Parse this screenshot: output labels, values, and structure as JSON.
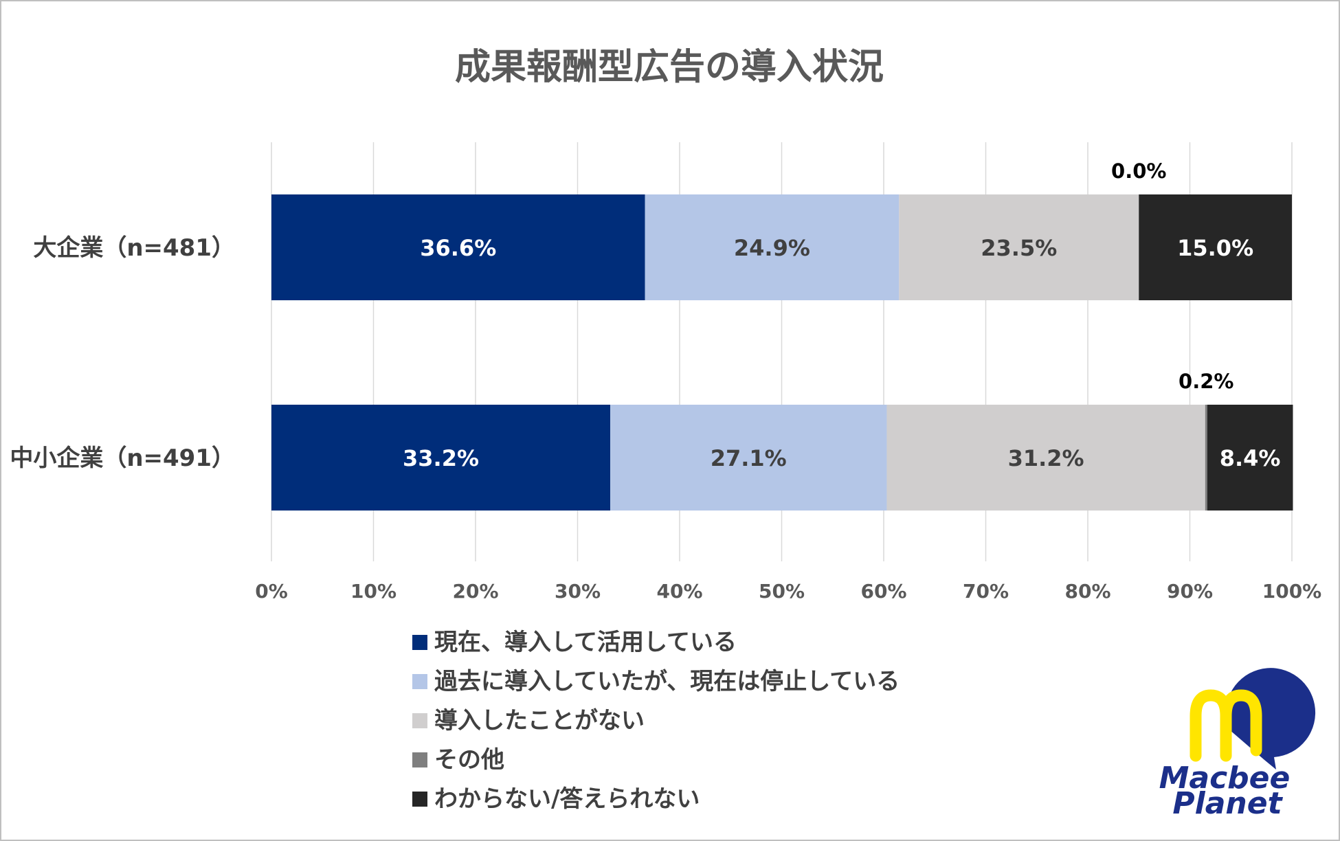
{
  "chart_data": {
    "type": "bar",
    "orientation": "horizontal",
    "stacked": true,
    "normalized": true,
    "title": "成果報酬型広告の導入状況",
    "categories": [
      "大企業（n=481）",
      "中小企業（n=491）"
    ],
    "series": [
      {
        "name": "現在、導入して活用している",
        "color": "#002d7a",
        "label_color": "#ffffff",
        "values": [
          36.6,
          33.2
        ],
        "labels": [
          "36.6%",
          "33.2%"
        ]
      },
      {
        "name": "過去に導入していたが、現在は停止している",
        "color": "#b4c6e7",
        "label_color": "#404040",
        "values": [
          24.9,
          27.1
        ],
        "labels": [
          "24.9%",
          "27.1%"
        ]
      },
      {
        "name": "導入したことがない",
        "color": "#d0cece",
        "label_color": "#404040",
        "values": [
          23.5,
          31.2
        ],
        "labels": [
          "23.5%",
          "31.2%"
        ]
      },
      {
        "name": "その他",
        "color": "#7f7f7f",
        "label_color": "#000000",
        "values": [
          0.0,
          0.2
        ],
        "labels": [
          "0.0%",
          "0.2%"
        ],
        "label_position": "above"
      },
      {
        "name": "わからない/答えられない",
        "color": "#262626",
        "label_color": "#ffffff",
        "values": [
          15.0,
          8.4
        ],
        "labels": [
          "15.0%",
          "8.4%"
        ]
      }
    ],
    "x_ticks": [
      "0%",
      "10%",
      "20%",
      "30%",
      "40%",
      "50%",
      "60%",
      "70%",
      "80%",
      "90%",
      "100%"
    ],
    "xlim": [
      0,
      100
    ],
    "grid": "vertical",
    "legend_position": "bottom-left"
  },
  "logo": {
    "name": "macbee-planet-logo",
    "text": "Macbee Planet",
    "colors": {
      "blue": "#1b2f8a",
      "yellow": "#ffe500"
    }
  }
}
